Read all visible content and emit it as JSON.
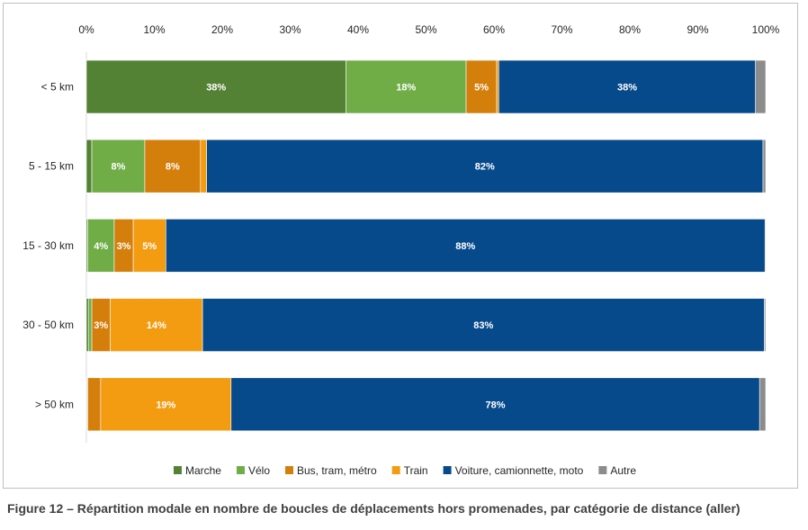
{
  "chart_data": {
    "type": "bar",
    "orientation": "horizontal",
    "stacked": true,
    "xlim": [
      0,
      100
    ],
    "x_ticks": [
      "0%",
      "10%",
      "20%",
      "30%",
      "40%",
      "50%",
      "60%",
      "70%",
      "80%",
      "90%",
      "100%"
    ],
    "categories": [
      "< 5 km",
      "5 - 15 km",
      "15 - 30 km",
      "30 - 50 km",
      "> 50 km"
    ],
    "series": [
      {
        "name": "Marche",
        "color": "#548235",
        "values": [
          38.2,
          0.8,
          0.2,
          0.3,
          0.1
        ],
        "labels": [
          "38%",
          "",
          "",
          "",
          ""
        ]
      },
      {
        "name": "Vélo",
        "color": "#70ad47",
        "values": [
          17.7,
          7.8,
          3.9,
          0.5,
          0.1
        ],
        "labels": [
          "18%",
          "8%",
          "4%",
          "",
          ""
        ]
      },
      {
        "name": "Bus, tram, métro",
        "color": "#d47f0c",
        "values": [
          4.5,
          8.2,
          2.8,
          2.7,
          1.9
        ],
        "labels": [
          "5%",
          "8%",
          "3%",
          "3%",
          ""
        ]
      },
      {
        "name": "Train",
        "color": "#f39c12",
        "values": [
          0.3,
          0.9,
          4.8,
          13.6,
          19.2
        ],
        "labels": [
          "",
          "",
          "5%",
          "14%",
          "19%"
        ]
      },
      {
        "name": "Voiture, camionnette, moto",
        "color": "#074a8b",
        "values": [
          37.8,
          81.9,
          88.2,
          82.7,
          77.8
        ],
        "labels": [
          "38%",
          "82%",
          "88%",
          "83%",
          "78%"
        ]
      },
      {
        "name": "Autre",
        "color": "#8c8c8c",
        "values": [
          1.5,
          0.4,
          0.1,
          0.2,
          0.9
        ],
        "labels": [
          "",
          "",
          "",
          "",
          ""
        ]
      }
    ],
    "grid": false,
    "legend_position": "bottom"
  },
  "caption": "Figure 12 – Répartition modale en nombre de boucles de déplacements hors promenades, par catégorie de distance (aller)"
}
